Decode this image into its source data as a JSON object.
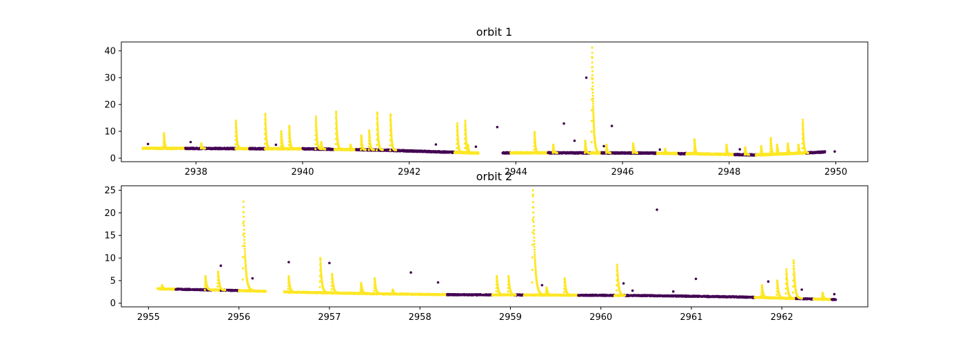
{
  "colors": {
    "baseline": "#440154",
    "flare": "#fde725",
    "axis": "#000000",
    "background": "#ffffff"
  },
  "chart_data": [
    {
      "type": "scatter",
      "title": "orbit 1",
      "xlabel": "",
      "ylabel": "",
      "xlim": [
        2936.6,
        2950.6
      ],
      "ylim": [
        -1.3,
        43.3
      ],
      "xticks": [
        2938,
        2940,
        2942,
        2944,
        2946,
        2948,
        2950
      ],
      "yticks": [
        0,
        10,
        20,
        30,
        40
      ],
      "grid": false,
      "gaps": [
        [
          2943.3,
          2943.75
        ]
      ],
      "baseline": [
        [
          2937.0,
          3.7
        ],
        [
          2938.5,
          3.6
        ],
        [
          2940.0,
          3.5
        ],
        [
          2941.5,
          3.0
        ],
        [
          2942.5,
          2.4
        ],
        [
          2943.3,
          1.9
        ],
        [
          2943.75,
          2.0
        ],
        [
          2945.0,
          2.0
        ],
        [
          2946.5,
          1.9
        ],
        [
          2947.5,
          1.6
        ],
        [
          2948.5,
          1.2
        ],
        [
          2949.0,
          1.6
        ],
        [
          2949.8,
          2.3
        ]
      ],
      "flares": [
        {
          "t": 2937.4,
          "peak": 9.3
        },
        {
          "t": 2938.1,
          "peak": 5.5
        },
        {
          "t": 2938.75,
          "peak": 14.0
        },
        {
          "t": 2939.3,
          "peak": 16.5
        },
        {
          "t": 2939.6,
          "peak": 10.0
        },
        {
          "t": 2939.75,
          "peak": 12.0
        },
        {
          "t": 2940.25,
          "peak": 15.5
        },
        {
          "t": 2940.35,
          "peak": 6.0
        },
        {
          "t": 2940.63,
          "peak": 17.3
        },
        {
          "t": 2940.9,
          "peak": 5.0
        },
        {
          "t": 2941.1,
          "peak": 8.5
        },
        {
          "t": 2941.25,
          "peak": 10.3
        },
        {
          "t": 2941.4,
          "peak": 17.0
        },
        {
          "t": 2941.65,
          "peak": 16.3
        },
        {
          "t": 2942.9,
          "peak": 13.0
        },
        {
          "t": 2943.05,
          "peak": 14.0
        },
        {
          "t": 2943.1,
          "peak": 5.0
        },
        {
          "t": 2944.35,
          "peak": 9.8
        },
        {
          "t": 2944.7,
          "peak": 5.0
        },
        {
          "t": 2945.3,
          "peak": 6.5
        },
        {
          "t": 2945.43,
          "peak": 41.2
        },
        {
          "t": 2945.7,
          "peak": 5.0
        },
        {
          "t": 2946.2,
          "peak": 5.5
        },
        {
          "t": 2946.8,
          "peak": 3.5
        },
        {
          "t": 2947.35,
          "peak": 7.0
        },
        {
          "t": 2947.95,
          "peak": 5.0
        },
        {
          "t": 2948.3,
          "peak": 4.0
        },
        {
          "t": 2948.6,
          "peak": 4.5
        },
        {
          "t": 2948.78,
          "peak": 7.5
        },
        {
          "t": 2948.9,
          "peak": 5.0
        },
        {
          "t": 2949.1,
          "peak": 5.5
        },
        {
          "t": 2949.3,
          "peak": 5.0
        },
        {
          "t": 2949.38,
          "peak": 14.3
        }
      ],
      "segments": [
        [
          2937.0,
          2937.8
        ],
        [
          2938.75,
          2939.0
        ],
        [
          2939.3,
          2940.0
        ],
        [
          2940.6,
          2941.0
        ],
        [
          2942.85,
          2943.3
        ],
        [
          2943.9,
          2944.6
        ],
        [
          2945.4,
          2945.6
        ],
        [
          2946.65,
          2947.05
        ],
        [
          2947.2,
          2948.1
        ],
        [
          2948.5,
          2949.45
        ]
      ],
      "outliers": [
        [
          2937.1,
          5.3
        ],
        [
          2937.9,
          6.0
        ],
        [
          2939.5,
          5.0
        ],
        [
          2941.6,
          3.2
        ],
        [
          2942.5,
          5.1
        ],
        [
          2943.25,
          4.3
        ],
        [
          2943.65,
          11.6
        ],
        [
          2944.9,
          12.9
        ],
        [
          2945.1,
          6.5
        ],
        [
          2945.32,
          30.0
        ],
        [
          2945.65,
          4.5
        ],
        [
          2945.8,
          12.0
        ],
        [
          2946.7,
          3.2
        ],
        [
          2948.2,
          3.3
        ],
        [
          2949.98,
          2.5
        ]
      ]
    },
    {
      "type": "scatter",
      "title": "orbit 2",
      "xlabel": "",
      "ylabel": "",
      "xlim": [
        2954.7,
        2962.95
      ],
      "ylim": [
        -0.8,
        26.0
      ],
      "xticks": [
        2955,
        2956,
        2957,
        2958,
        2959,
        2960,
        2961,
        2962
      ],
      "yticks": [
        0,
        5,
        10,
        15,
        20,
        25
      ],
      "grid": false,
      "gaps": [
        [
          2956.3,
          2956.5
        ]
      ],
      "baseline": [
        [
          2955.1,
          3.2
        ],
        [
          2956.0,
          2.8
        ],
        [
          2956.5,
          2.5
        ],
        [
          2957.5,
          2.1
        ],
        [
          2958.3,
          1.9
        ],
        [
          2959.5,
          1.8
        ],
        [
          2960.5,
          1.7
        ],
        [
          2961.5,
          1.4
        ],
        [
          2962.6,
          0.8
        ]
      ],
      "flares": [
        {
          "t": 2955.15,
          "peak": 4.0
        },
        {
          "t": 2955.63,
          "peak": 6.0
        },
        {
          "t": 2955.77,
          "peak": 7.0
        },
        {
          "t": 2956.05,
          "peak": 22.5
        },
        {
          "t": 2956.55,
          "peak": 6.0
        },
        {
          "t": 2956.9,
          "peak": 10.0
        },
        {
          "t": 2957.03,
          "peak": 6.5
        },
        {
          "t": 2957.35,
          "peak": 4.5
        },
        {
          "t": 2957.5,
          "peak": 5.5
        },
        {
          "t": 2957.7,
          "peak": 3.0
        },
        {
          "t": 2958.85,
          "peak": 6.0
        },
        {
          "t": 2958.98,
          "peak": 6.0
        },
        {
          "t": 2959.25,
          "peak": 25.0
        },
        {
          "t": 2959.4,
          "peak": 3.5
        },
        {
          "t": 2959.6,
          "peak": 5.5
        },
        {
          "t": 2960.18,
          "peak": 8.5
        },
        {
          "t": 2961.78,
          "peak": 4.0
        },
        {
          "t": 2961.95,
          "peak": 5.0
        },
        {
          "t": 2962.05,
          "peak": 7.5
        },
        {
          "t": 2962.13,
          "peak": 9.5
        },
        {
          "t": 2962.45,
          "peak": 2.3
        }
      ],
      "segments": [
        [
          2955.1,
          2955.3
        ],
        [
          2955.7,
          2955.8
        ],
        [
          2956.0,
          2956.3
        ],
        [
          2956.5,
          2958.3
        ],
        [
          2958.8,
          2959.05
        ],
        [
          2959.15,
          2959.75
        ],
        [
          2960.15,
          2960.25
        ],
        [
          2961.7,
          2962.15
        ],
        [
          2962.35,
          2962.55
        ]
      ],
      "outliers": [
        [
          2955.8,
          8.3
        ],
        [
          2956.15,
          5.5
        ],
        [
          2956.55,
          9.1
        ],
        [
          2957.0,
          8.9
        ],
        [
          2957.9,
          6.8
        ],
        [
          2958.2,
          4.6
        ],
        [
          2959.35,
          4.0
        ],
        [
          2960.25,
          4.4
        ],
        [
          2960.35,
          2.8
        ],
        [
          2960.62,
          20.7
        ],
        [
          2960.8,
          2.6
        ],
        [
          2961.05,
          5.4
        ],
        [
          2961.85,
          4.8
        ],
        [
          2962.22,
          3.0
        ],
        [
          2962.58,
          2.0
        ]
      ]
    }
  ]
}
